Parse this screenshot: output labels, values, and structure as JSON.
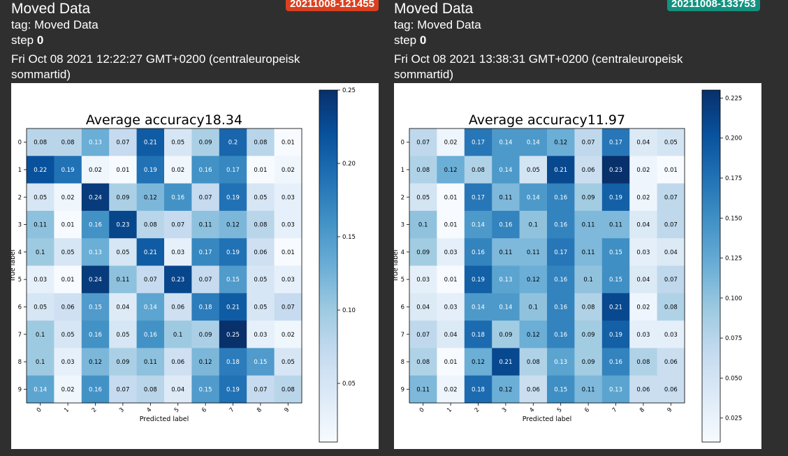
{
  "cards": [
    {
      "title": "Moved Data",
      "run": "20211008-121455",
      "run_color": "#d9401f",
      "tag_line": "tag: Moved Data",
      "step_label": "step",
      "step_value": "0",
      "date": "Fri Oct 08 2021 12:22:27 GMT+0200 (centraleuropeisk sommartid)",
      "chart_data": {
        "type": "heatmap",
        "title": "Average accuracy18.34",
        "xlabel": "Predicted label",
        "ylabel": "True label",
        "x_ticks": [
          "0",
          "1",
          "2",
          "3",
          "4",
          "5",
          "6",
          "7",
          "8",
          "9"
        ],
        "y_ticks": [
          "0",
          "1",
          "2",
          "3",
          "4",
          "5",
          "6",
          "7",
          "8",
          "9"
        ],
        "colormap": "Blues",
        "vmin": 0.01,
        "vmax": 0.25,
        "colorbar_ticks": [
          "0.05",
          "0.10",
          "0.15",
          "0.20",
          "0.25"
        ],
        "matrix": [
          [
            0.08,
            0.08,
            0.13,
            0.07,
            0.21,
            0.05,
            0.09,
            0.2,
            0.08,
            0.01
          ],
          [
            0.22,
            0.19,
            0.02,
            0.01,
            0.19,
            0.02,
            0.16,
            0.17,
            0.01,
            0.02
          ],
          [
            0.05,
            0.02,
            0.24,
            0.09,
            0.12,
            0.16,
            0.07,
            0.19,
            0.05,
            0.03
          ],
          [
            0.11,
            0.01,
            0.16,
            0.23,
            0.08,
            0.07,
            0.11,
            0.12,
            0.08,
            0.03
          ],
          [
            0.1,
            0.05,
            0.13,
            0.05,
            0.21,
            0.03,
            0.17,
            0.19,
            0.06,
            0.01
          ],
          [
            0.03,
            0.01,
            0.24,
            0.11,
            0.07,
            0.23,
            0.07,
            0.15,
            0.05,
            0.03
          ],
          [
            0.05,
            0.06,
            0.15,
            0.04,
            0.14,
            0.06,
            0.18,
            0.21,
            0.05,
            0.07
          ],
          [
            0.1,
            0.05,
            0.16,
            0.05,
            0.16,
            0.1,
            0.09,
            0.25,
            0.03,
            0.02
          ],
          [
            0.1,
            0.03,
            0.12,
            0.09,
            0.11,
            0.06,
            0.12,
            0.18,
            0.15,
            0.05
          ],
          [
            0.14,
            0.02,
            0.16,
            0.07,
            0.08,
            0.04,
            0.15,
            0.19,
            0.07,
            0.08
          ]
        ]
      }
    },
    {
      "title": "Moved Data",
      "run": "20211008-133753",
      "run_color": "#13917f",
      "tag_line": "tag: Moved Data",
      "step_label": "step",
      "step_value": "0",
      "date": "Fri Oct 08 2021 13:38:31 GMT+0200 (centraleuropeisk sommartid)",
      "chart_data": {
        "type": "heatmap",
        "title": "Average accuracy11.97",
        "xlabel": "Predicted label",
        "ylabel": "True label",
        "x_ticks": [
          "0",
          "1",
          "2",
          "3",
          "4",
          "5",
          "6",
          "7",
          "8",
          "9"
        ],
        "y_ticks": [
          "0",
          "1",
          "2",
          "3",
          "4",
          "5",
          "6",
          "7",
          "8",
          "9"
        ],
        "colormap": "Blues",
        "vmin": 0.01,
        "vmax": 0.23,
        "colorbar_ticks": [
          "0.025",
          "0.050",
          "0.075",
          "0.100",
          "0.125",
          "0.150",
          "0.175",
          "0.200",
          "0.225"
        ],
        "matrix": [
          [
            0.07,
            0.02,
            0.17,
            0.14,
            0.14,
            0.12,
            0.07,
            0.17,
            0.04,
            0.05
          ],
          [
            0.08,
            0.12,
            0.08,
            0.14,
            0.05,
            0.21,
            0.06,
            0.23,
            0.02,
            0.01
          ],
          [
            0.05,
            0.01,
            0.17,
            0.11,
            0.14,
            0.16,
            0.09,
            0.19,
            0.02,
            0.07
          ],
          [
            0.1,
            0.01,
            0.14,
            0.16,
            0.1,
            0.16,
            0.11,
            0.11,
            0.04,
            0.07
          ],
          [
            0.09,
            0.03,
            0.16,
            0.11,
            0.11,
            0.17,
            0.11,
            0.15,
            0.03,
            0.04
          ],
          [
            0.03,
            0.01,
            0.19,
            0.13,
            0.12,
            0.16,
            0.1,
            0.15,
            0.04,
            0.07
          ],
          [
            0.04,
            0.03,
            0.14,
            0.14,
            0.1,
            0.16,
            0.08,
            0.21,
            0.02,
            0.08
          ],
          [
            0.07,
            0.04,
            0.18,
            0.09,
            0.12,
            0.16,
            0.09,
            0.19,
            0.03,
            0.03
          ],
          [
            0.08,
            0.01,
            0.12,
            0.21,
            0.08,
            0.13,
            0.09,
            0.16,
            0.08,
            0.06
          ],
          [
            0.11,
            0.02,
            0.18,
            0.12,
            0.06,
            0.15,
            0.11,
            0.13,
            0.06,
            0.06
          ]
        ]
      }
    }
  ]
}
